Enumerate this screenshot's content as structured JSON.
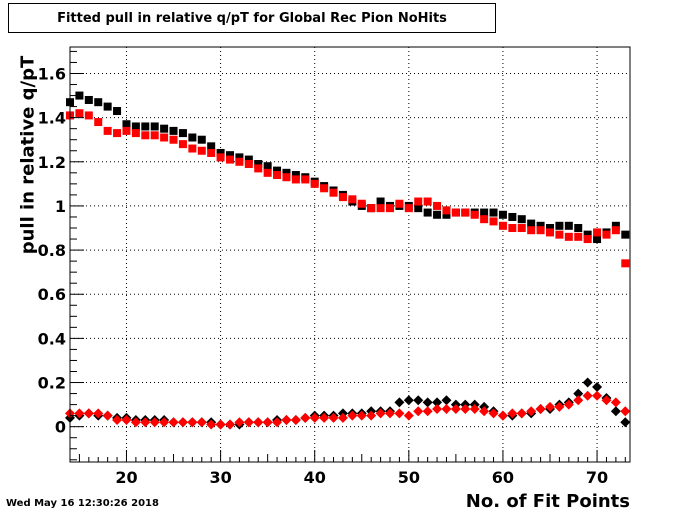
{
  "chart_data": {
    "type": "scatter",
    "title": "Fitted pull in relative q/pT for Global Rec Pion NoHits",
    "xlabel": "No. of Fit Points",
    "ylabel": "pull in relative q/pT",
    "xlim": [
      14,
      73.5
    ],
    "ylim": [
      -0.16,
      1.72
    ],
    "x_ticks": [
      20,
      30,
      40,
      50,
      60,
      70
    ],
    "x_tick_labels": [
      "20",
      "30",
      "40",
      "50",
      "60",
      "70"
    ],
    "y_ticks": [
      0,
      0.2,
      0.4,
      0.6,
      0.8,
      1,
      1.2,
      1.4,
      1.6
    ],
    "y_tick_labels": [
      "0",
      "0.2",
      "0.4",
      "0.6",
      "0.8",
      "1",
      "1.2",
      "1.4",
      "1.6"
    ],
    "grid": true,
    "timestamp": "Wed May 16 12:30:26 2018",
    "x": [
      14,
      15,
      16,
      17,
      18,
      19,
      20,
      21,
      22,
      23,
      24,
      25,
      26,
      27,
      28,
      29,
      30,
      31,
      32,
      33,
      34,
      35,
      36,
      37,
      38,
      39,
      40,
      41,
      42,
      43,
      44,
      45,
      46,
      47,
      48,
      49,
      50,
      51,
      52,
      53,
      54,
      55,
      56,
      57,
      58,
      59,
      60,
      61,
      62,
      63,
      64,
      65,
      66,
      67,
      68,
      69,
      70,
      71,
      72,
      73
    ],
    "series": [
      {
        "marker": "square",
        "color": "#000000",
        "values": [
          1.47,
          1.5,
          1.48,
          1.47,
          1.45,
          1.43,
          1.37,
          1.36,
          1.36,
          1.36,
          1.35,
          1.34,
          1.33,
          1.31,
          1.3,
          1.27,
          1.24,
          1.23,
          1.22,
          1.21,
          1.19,
          1.18,
          1.16,
          1.15,
          1.14,
          1.13,
          1.11,
          1.09,
          1.07,
          1.05,
          1.02,
          1.0,
          0.99,
          1.02,
          1.0,
          1.0,
          1.0,
          0.99,
          0.97,
          0.96,
          0.96,
          0.97,
          0.97,
          0.97,
          0.97,
          0.97,
          0.96,
          0.95,
          0.94,
          0.92,
          0.91,
          0.9,
          0.91,
          0.91,
          0.9,
          0.87,
          0.85,
          0.88,
          0.91,
          0.87
        ]
      },
      {
        "marker": "square",
        "color": "#ff0000",
        "values": [
          1.41,
          1.42,
          1.41,
          1.38,
          1.34,
          1.33,
          1.34,
          1.33,
          1.32,
          1.32,
          1.31,
          1.3,
          1.28,
          1.26,
          1.25,
          1.24,
          1.22,
          1.21,
          1.2,
          1.19,
          1.17,
          1.15,
          1.14,
          1.13,
          1.12,
          1.12,
          1.1,
          1.08,
          1.06,
          1.04,
          1.03,
          1.01,
          0.99,
          0.99,
          0.99,
          1.01,
          0.99,
          1.02,
          1.02,
          1.0,
          0.98,
          0.97,
          0.97,
          0.96,
          0.94,
          0.93,
          0.91,
          0.9,
          0.9,
          0.89,
          0.89,
          0.88,
          0.87,
          0.86,
          0.86,
          0.85,
          0.88,
          0.87,
          0.89,
          0.74
        ]
      },
      {
        "marker": "diamond",
        "color": "#000000",
        "values": [
          0.04,
          0.05,
          0.06,
          0.05,
          0.05,
          0.04,
          0.04,
          0.03,
          0.03,
          0.03,
          0.03,
          0.02,
          0.02,
          0.02,
          0.02,
          0.02,
          0.01,
          0.01,
          0.01,
          0.02,
          0.02,
          0.02,
          0.03,
          0.03,
          0.03,
          0.04,
          0.05,
          0.05,
          0.05,
          0.06,
          0.06,
          0.06,
          0.07,
          0.07,
          0.07,
          0.11,
          0.12,
          0.12,
          0.11,
          0.11,
          0.12,
          0.1,
          0.1,
          0.1,
          0.09,
          0.07,
          0.05,
          0.05,
          0.06,
          0.06,
          0.08,
          0.08,
          0.1,
          0.11,
          0.15,
          0.2,
          0.18,
          0.13,
          0.07,
          0.02
        ]
      },
      {
        "marker": "diamond",
        "color": "#ff0000",
        "values": [
          0.06,
          0.06,
          0.06,
          0.06,
          0.05,
          0.03,
          0.03,
          0.02,
          0.02,
          0.02,
          0.02,
          0.02,
          0.02,
          0.02,
          0.02,
          0.01,
          0.01,
          0.01,
          0.02,
          0.02,
          0.02,
          0.02,
          0.02,
          0.03,
          0.03,
          0.04,
          0.04,
          0.04,
          0.04,
          0.04,
          0.05,
          0.05,
          0.05,
          0.06,
          0.06,
          0.06,
          0.05,
          0.07,
          0.07,
          0.08,
          0.08,
          0.08,
          0.08,
          0.08,
          0.07,
          0.06,
          0.05,
          0.06,
          0.06,
          0.07,
          0.08,
          0.09,
          0.09,
          0.1,
          0.12,
          0.14,
          0.14,
          0.12,
          0.11,
          0.07
        ]
      }
    ]
  }
}
